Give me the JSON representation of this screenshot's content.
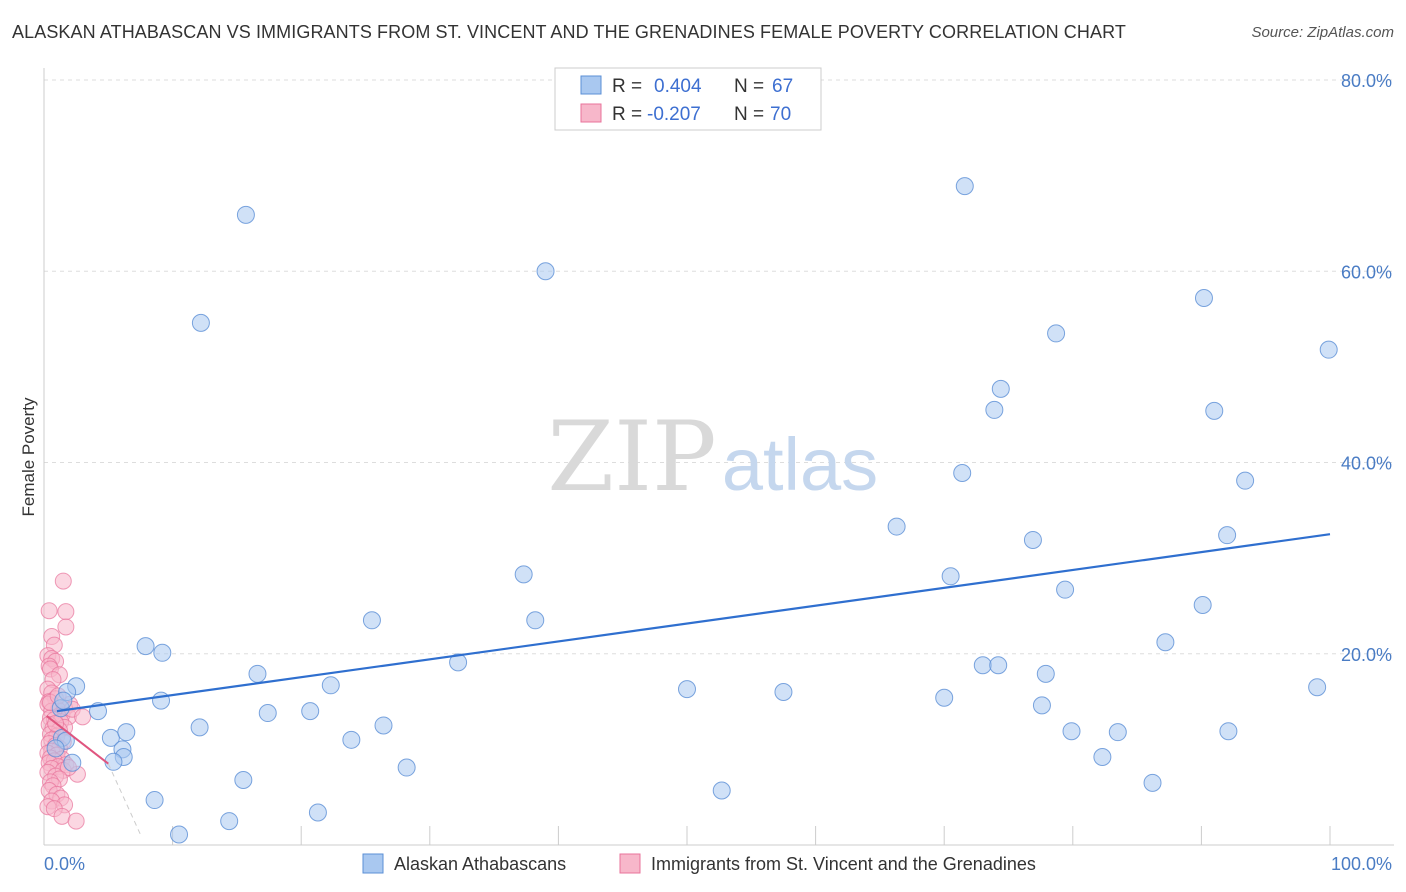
{
  "title": "ALASKAN ATHABASCAN VS IMMIGRANTS FROM ST. VINCENT AND THE GRENADINES FEMALE POVERTY CORRELATION CHART",
  "source": "Source: ZipAtlas.com",
  "watermark": {
    "zip": "ZIP",
    "atlas": "atlas"
  },
  "legend": {
    "r_label": "R =",
    "n_label": "N =",
    "series1": {
      "r": "0.404",
      "n": "67"
    },
    "series2": {
      "r": "-0.207",
      "n": "70"
    }
  },
  "bottom_legend": {
    "series1": "Alaskan Athabascans",
    "series2": "Immigrants from St. Vincent and the Grenadines"
  },
  "colors": {
    "blue_fill": "#a9c8f0",
    "blue_stroke": "#5b8fd6",
    "blue_line": "#2f6fcf",
    "pink_fill": "#f7b7ca",
    "pink_stroke": "#e8739b",
    "pink_line": "#e0557f",
    "grid": "#dddddd",
    "axis_label": "#4a7cc4"
  },
  "chart_data": {
    "type": "scatter",
    "title": "ALASKAN ATHABASCAN VS IMMIGRANTS FROM ST. VINCENT AND THE GRENADINES FEMALE POVERTY CORRELATION CHART",
    "xlabel": "",
    "ylabel": "Female Poverty",
    "xlim": [
      0,
      100
    ],
    "ylim": [
      0,
      80
    ],
    "x_tick_labels": [
      "0.0%",
      "100.0%"
    ],
    "y_tick_labels": [
      "20.0%",
      "40.0%",
      "60.0%",
      "80.0%"
    ],
    "y_ticks": [
      20,
      40,
      60,
      80
    ],
    "series": [
      {
        "name": "Alaskan Athabascans",
        "r": 0.404,
        "n": 67,
        "trend": {
          "x": [
            1.0,
            100.0
          ],
          "y": [
            14.0,
            32.5
          ]
        },
        "points": [
          [
            15.7,
            65.9
          ],
          [
            12.2,
            54.6
          ],
          [
            39.0,
            60.0
          ],
          [
            71.6,
            68.9
          ],
          [
            90.2,
            57.2
          ],
          [
            78.7,
            53.5
          ],
          [
            99.9,
            51.8
          ],
          [
            74.4,
            47.7
          ],
          [
            73.9,
            45.5
          ],
          [
            91.0,
            45.4
          ],
          [
            71.4,
            38.9
          ],
          [
            93.4,
            38.1
          ],
          [
            66.3,
            33.3
          ],
          [
            76.9,
            31.9
          ],
          [
            92.0,
            32.4
          ],
          [
            37.3,
            28.3
          ],
          [
            70.5,
            28.1
          ],
          [
            79.4,
            26.7
          ],
          [
            90.1,
            25.1
          ],
          [
            25.5,
            23.5
          ],
          [
            38.2,
            23.5
          ],
          [
            87.2,
            21.2
          ],
          [
            7.9,
            20.8
          ],
          [
            9.2,
            20.1
          ],
          [
            32.2,
            19.1
          ],
          [
            73.0,
            18.8
          ],
          [
            74.2,
            18.8
          ],
          [
            77.9,
            17.9
          ],
          [
            16.6,
            17.9
          ],
          [
            2.5,
            16.6
          ],
          [
            1.8,
            16.0
          ],
          [
            22.3,
            16.7
          ],
          [
            50.0,
            16.3
          ],
          [
            57.5,
            16.0
          ],
          [
            99.0,
            16.5
          ],
          [
            70.0,
            15.4
          ],
          [
            9.1,
            15.1
          ],
          [
            77.6,
            14.6
          ],
          [
            1.3,
            14.3
          ],
          [
            4.2,
            14.0
          ],
          [
            17.4,
            13.8
          ],
          [
            20.7,
            14.0
          ],
          [
            12.1,
            12.3
          ],
          [
            26.4,
            12.5
          ],
          [
            79.9,
            11.9
          ],
          [
            83.5,
            11.8
          ],
          [
            92.1,
            11.9
          ],
          [
            5.2,
            11.2
          ],
          [
            1.4,
            11.2
          ],
          [
            6.4,
            11.8
          ],
          [
            23.9,
            11.0
          ],
          [
            1.7,
            10.9
          ],
          [
            6.1,
            10.0
          ],
          [
            6.2,
            9.2
          ],
          [
            5.4,
            8.7
          ],
          [
            2.2,
            8.6
          ],
          [
            28.2,
            8.1
          ],
          [
            82.3,
            9.2
          ],
          [
            15.5,
            6.8
          ],
          [
            86.2,
            6.5
          ],
          [
            52.7,
            5.7
          ],
          [
            8.6,
            4.7
          ],
          [
            21.3,
            3.4
          ],
          [
            14.4,
            2.5
          ],
          [
            10.5,
            1.1
          ],
          [
            0.9,
            10.1
          ],
          [
            1.5,
            15.1
          ]
        ]
      },
      {
        "name": "Immigrants from St. Vincent and the Grenadines",
        "r": -0.207,
        "n": 70,
        "trend": {
          "x": [
            0.2,
            5.0
          ],
          "y": [
            13.5,
            8.5
          ]
        },
        "trend_extension": {
          "x": [
            5.0,
            7.6
          ],
          "y": [
            8.5,
            0.8
          ]
        },
        "points": [
          [
            1.5,
            27.6
          ],
          [
            0.4,
            24.5
          ],
          [
            1.7,
            24.4
          ],
          [
            1.7,
            22.8
          ],
          [
            0.6,
            21.8
          ],
          [
            0.8,
            20.9
          ],
          [
            0.3,
            19.8
          ],
          [
            0.6,
            19.5
          ],
          [
            0.9,
            19.2
          ],
          [
            0.4,
            18.7
          ],
          [
            0.5,
            18.4
          ],
          [
            1.2,
            17.8
          ],
          [
            0.7,
            17.3
          ],
          [
            0.3,
            16.3
          ],
          [
            0.6,
            15.9
          ],
          [
            0.9,
            15.3
          ],
          [
            0.4,
            15.0
          ],
          [
            0.3,
            14.7
          ],
          [
            2.0,
            14.7
          ],
          [
            1.6,
            14.3
          ],
          [
            1.1,
            14.1
          ],
          [
            0.6,
            14.0
          ],
          [
            1.4,
            13.6
          ],
          [
            1.9,
            13.4
          ],
          [
            0.5,
            13.3
          ],
          [
            0.8,
            13.1
          ],
          [
            1.3,
            12.9
          ],
          [
            0.4,
            12.6
          ],
          [
            1.6,
            12.3
          ],
          [
            0.7,
            12.2
          ],
          [
            1.2,
            12.0
          ],
          [
            0.5,
            11.6
          ],
          [
            1.0,
            11.4
          ],
          [
            0.6,
            11.0
          ],
          [
            1.5,
            10.8
          ],
          [
            0.4,
            10.6
          ],
          [
            0.9,
            10.4
          ],
          [
            1.2,
            10.1
          ],
          [
            0.6,
            9.8
          ],
          [
            0.3,
            9.6
          ],
          [
            1.0,
            9.4
          ],
          [
            0.5,
            9.1
          ],
          [
            1.4,
            9.0
          ],
          [
            0.8,
            8.8
          ],
          [
            0.4,
            8.6
          ],
          [
            1.7,
            8.4
          ],
          [
            1.1,
            8.2
          ],
          [
            0.6,
            8.0
          ],
          [
            1.5,
            7.8
          ],
          [
            0.3,
            7.6
          ],
          [
            2.6,
            7.4
          ],
          [
            1.9,
            8.1
          ],
          [
            0.9,
            7.2
          ],
          [
            1.2,
            6.9
          ],
          [
            0.5,
            6.6
          ],
          [
            0.7,
            6.2
          ],
          [
            0.4,
            5.7
          ],
          [
            1.0,
            5.3
          ],
          [
            1.3,
            4.9
          ],
          [
            0.6,
            4.6
          ],
          [
            1.6,
            4.2
          ],
          [
            0.3,
            4.0
          ],
          [
            0.8,
            3.8
          ],
          [
            1.4,
            3.0
          ],
          [
            2.5,
            2.5
          ],
          [
            0.5,
            14.9
          ],
          [
            1.1,
            15.6
          ],
          [
            2.2,
            14.2
          ],
          [
            0.9,
            12.7
          ],
          [
            3.0,
            13.4
          ]
        ]
      }
    ]
  }
}
